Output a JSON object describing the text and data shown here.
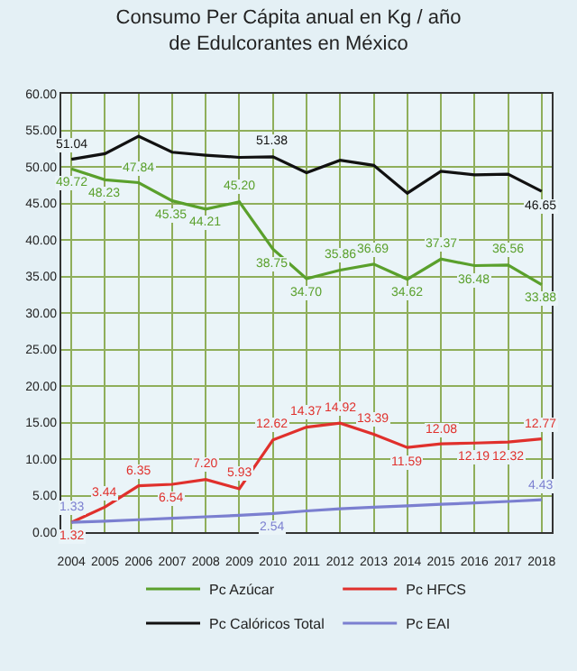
{
  "chart_data": {
    "type": "line",
    "title": "Consumo Per Cápita anual en Kg / año\nde Edulcorantes en México",
    "categories": [
      "2004",
      "2005",
      "2006",
      "2007",
      "2008",
      "2009",
      "2010",
      "2011",
      "2012",
      "2013",
      "2014",
      "2015",
      "2016",
      "2017",
      "2018"
    ],
    "series": [
      {
        "name": "Pc Azúcar",
        "color": "#5aa02c",
        "values": [
          49.72,
          48.23,
          47.84,
          45.35,
          44.21,
          45.2,
          38.75,
          34.7,
          35.86,
          36.69,
          34.62,
          37.37,
          36.48,
          36.56,
          33.88
        ],
        "value_labels": [
          "49.72",
          "48.23",
          "47.84",
          "45.35",
          "44.21",
          "45.20",
          "38.75",
          "34.70",
          "35.86",
          "36.69",
          "34.62",
          "37.37",
          "36.48",
          "36.56",
          "33.88"
        ]
      },
      {
        "name": "Pc HFCS",
        "color": "#e0302c",
        "values": [
          1.32,
          3.44,
          6.35,
          6.54,
          7.2,
          5.93,
          12.62,
          14.37,
          14.92,
          13.39,
          11.59,
          12.08,
          12.19,
          12.32,
          12.77
        ],
        "value_labels": [
          "1.32",
          "3.44",
          "6.35",
          "6.54",
          "7.20",
          "5.93",
          "12.62",
          "14.37",
          "14.92",
          "13.39",
          "11.59",
          "12.08",
          "12.19",
          "12.32",
          "12.77"
        ]
      },
      {
        "name": "Pc Calóricos Total",
        "color": "#111111",
        "values": [
          51.04,
          51.8,
          54.2,
          52.0,
          51.6,
          51.3,
          51.38,
          49.2,
          50.9,
          50.2,
          46.4,
          49.4,
          48.9,
          49.0,
          46.65
        ],
        "value_labels": [
          "51.04",
          null,
          null,
          null,
          null,
          null,
          "51.38",
          null,
          null,
          null,
          null,
          null,
          null,
          null,
          "46.65"
        ]
      },
      {
        "name": "Pc EAI",
        "color": "#7b7fd0",
        "values": [
          1.33,
          1.5,
          1.7,
          1.9,
          2.1,
          2.3,
          2.54,
          2.9,
          3.2,
          3.4,
          3.6,
          3.8,
          4.0,
          4.2,
          4.43
        ],
        "value_labels": [
          "1.33",
          null,
          null,
          null,
          null,
          null,
          "2.54",
          null,
          null,
          null,
          null,
          null,
          null,
          null,
          "4.43"
        ]
      }
    ],
    "ylim": [
      0,
      60
    ],
    "yticks": [
      {
        "value": 0,
        "label": "0.00"
      },
      {
        "value": 5,
        "label": "5.00"
      },
      {
        "value": 10,
        "label": "10.00"
      },
      {
        "value": 15,
        "label": "15.00"
      },
      {
        "value": 20,
        "label": "20.00"
      },
      {
        "value": 25,
        "label": "25.00"
      },
      {
        "value": 30,
        "label": "30.00"
      },
      {
        "value": 35,
        "label": "35.00"
      },
      {
        "value": 40,
        "label": "40.00"
      },
      {
        "value": 45,
        "label": "45.00"
      },
      {
        "value": 50,
        "label": "50.00"
      },
      {
        "value": 55,
        "label": "55.00"
      },
      {
        "value": 60,
        "label": "60.00"
      }
    ],
    "grid": true,
    "legend": "bottom",
    "marker": "none",
    "line_style": "solid"
  }
}
